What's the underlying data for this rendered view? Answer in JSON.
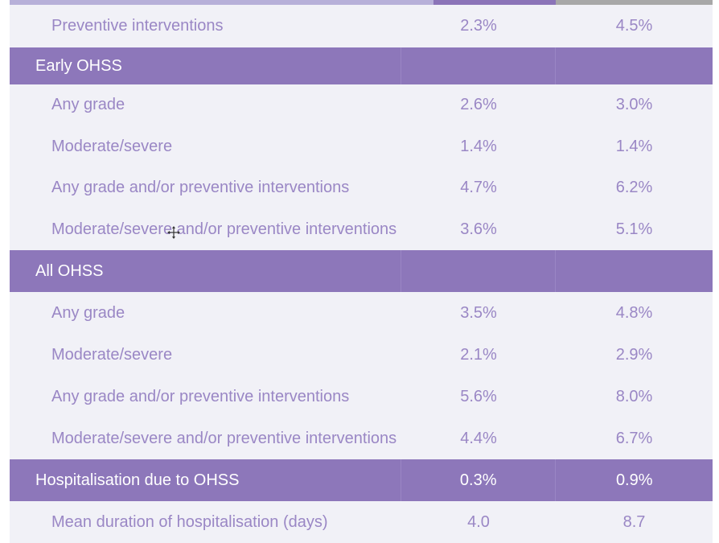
{
  "rows": [
    {
      "type": "sub",
      "label": "Preventive interventions",
      "v1": "2.3%",
      "v2": "4.5%"
    },
    {
      "type": "sec",
      "label": "Early OHSS",
      "v1": "",
      "v2": ""
    },
    {
      "type": "sub",
      "label": "Any grade",
      "v1": "2.6%",
      "v2": "3.0%"
    },
    {
      "type": "sub",
      "label": "Moderate/severe",
      "v1": "1.4%",
      "v2": "1.4%"
    },
    {
      "type": "sub",
      "label": "Any grade and/or preventive interventions",
      "v1": "4.7%",
      "v2": "6.2%"
    },
    {
      "type": "sub",
      "label": "Moderate/severe and/or preventive interventions",
      "v1": "3.6%",
      "v2": "5.1%"
    },
    {
      "type": "sec",
      "label": "All OHSS",
      "v1": "",
      "v2": ""
    },
    {
      "type": "sub",
      "label": "Any grade",
      "v1": "3.5%",
      "v2": "4.8%"
    },
    {
      "type": "sub",
      "label": "Moderate/severe",
      "v1": "2.1%",
      "v2": "2.9%"
    },
    {
      "type": "sub",
      "label": "Any grade and/or preventive interventions",
      "v1": "5.6%",
      "v2": "8.0%"
    },
    {
      "type": "sub",
      "label": "Moderate/severe and/or preventive interventions",
      "v1": "4.4%",
      "v2": "6.7%"
    },
    {
      "type": "sec",
      "label": "Hospitalisation due to OHSS",
      "v1": "0.3%",
      "v2": "0.9%"
    },
    {
      "type": "sub",
      "label": "Mean duration of hospitalisation (days)",
      "v1": "4.0",
      "v2": "8.7"
    }
  ],
  "colors": {
    "header_purple": "#8d77ba",
    "text_purple": "#9a87c5",
    "row_bg": "#f1f1f7"
  }
}
